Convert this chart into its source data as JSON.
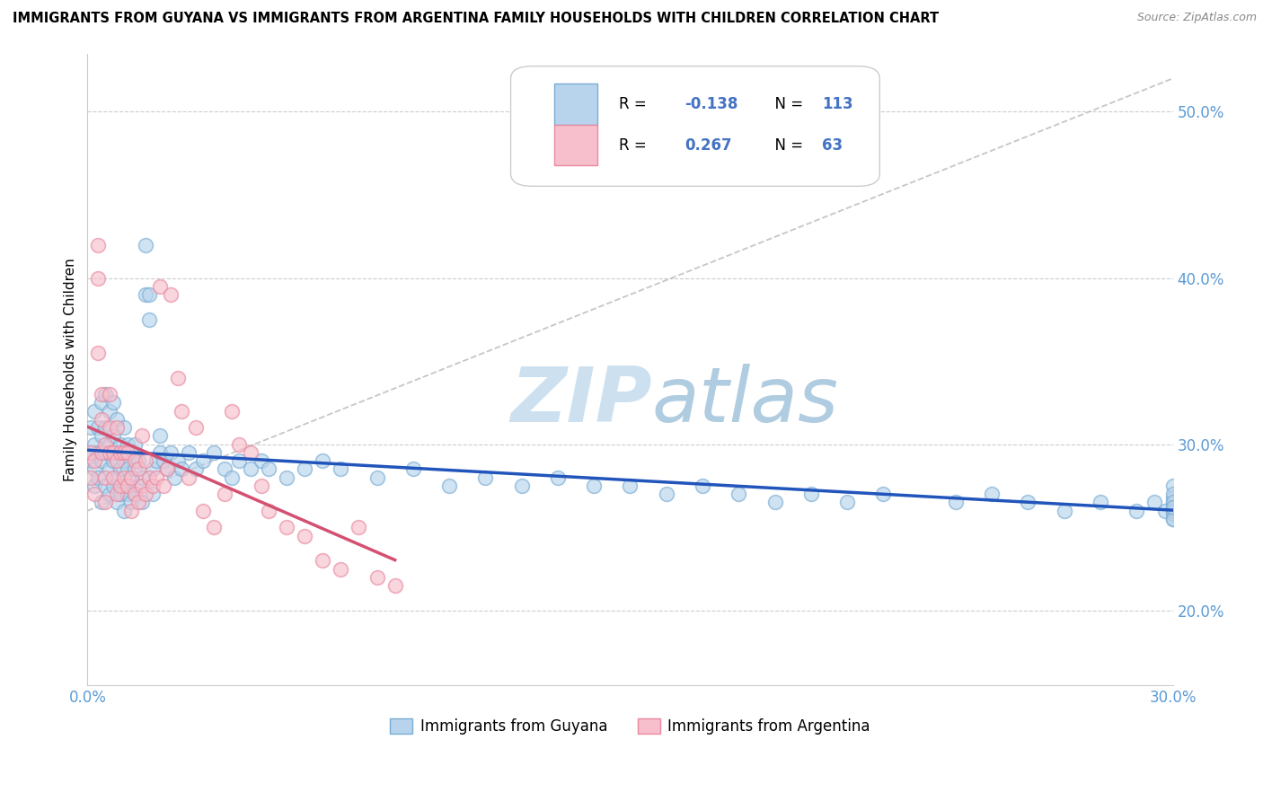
{
  "title": "IMMIGRANTS FROM GUYANA VS IMMIGRANTS FROM ARGENTINA FAMILY HOUSEHOLDS WITH CHILDREN CORRELATION CHART",
  "source": "Source: ZipAtlas.com",
  "ylabel": "Family Households with Children",
  "xlim": [
    0.0,
    0.3
  ],
  "ylim": [
    0.155,
    0.535
  ],
  "y_ticks": [
    0.2,
    0.3,
    0.4,
    0.5
  ],
  "x_ticks": [
    0.0,
    0.05,
    0.1,
    0.15,
    0.2,
    0.25,
    0.3
  ],
  "legend1_label": "Immigrants from Guyana",
  "legend2_label": "Immigrants from Argentina",
  "R_guyana": -0.138,
  "N_guyana": 113,
  "R_argentina": 0.267,
  "N_argentina": 63,
  "color_guyana_fill": "#b8d4ec",
  "color_guyana_edge": "#7aadd4",
  "color_argentina_fill": "#f7bfcc",
  "color_argentina_edge": "#e88aa0",
  "color_guyana_line": "#2255bb",
  "color_argentina_line": "#d45070",
  "color_diagonal": "#b8b8b8",
  "watermark_color": "#cce0f0",
  "guyana_x": [
    0.001,
    0.001,
    0.001,
    0.002,
    0.002,
    0.002,
    0.002,
    0.003,
    0.003,
    0.003,
    0.004,
    0.004,
    0.004,
    0.004,
    0.005,
    0.005,
    0.005,
    0.005,
    0.006,
    0.006,
    0.006,
    0.006,
    0.007,
    0.007,
    0.007,
    0.007,
    0.008,
    0.008,
    0.008,
    0.008,
    0.009,
    0.009,
    0.009,
    0.01,
    0.01,
    0.01,
    0.01,
    0.011,
    0.011,
    0.011,
    0.012,
    0.012,
    0.012,
    0.013,
    0.013,
    0.013,
    0.014,
    0.014,
    0.015,
    0.015,
    0.016,
    0.016,
    0.017,
    0.017,
    0.018,
    0.018,
    0.019,
    0.02,
    0.02,
    0.021,
    0.022,
    0.023,
    0.024,
    0.025,
    0.026,
    0.028,
    0.03,
    0.032,
    0.035,
    0.038,
    0.04,
    0.042,
    0.045,
    0.048,
    0.05,
    0.055,
    0.06,
    0.065,
    0.07,
    0.08,
    0.09,
    0.1,
    0.11,
    0.12,
    0.13,
    0.14,
    0.15,
    0.16,
    0.17,
    0.18,
    0.19,
    0.2,
    0.21,
    0.22,
    0.24,
    0.25,
    0.26,
    0.27,
    0.28,
    0.29,
    0.295,
    0.298,
    0.3,
    0.3,
    0.3,
    0.3,
    0.3,
    0.3,
    0.3,
    0.3,
    0.3,
    0.3,
    0.3
  ],
  "guyana_y": [
    0.29,
    0.31,
    0.295,
    0.285,
    0.275,
    0.3,
    0.32,
    0.28,
    0.295,
    0.31,
    0.265,
    0.29,
    0.305,
    0.325,
    0.275,
    0.295,
    0.31,
    0.33,
    0.27,
    0.285,
    0.3,
    0.32,
    0.275,
    0.29,
    0.305,
    0.325,
    0.265,
    0.28,
    0.295,
    0.315,
    0.27,
    0.285,
    0.3,
    0.26,
    0.275,
    0.29,
    0.31,
    0.27,
    0.285,
    0.3,
    0.265,
    0.28,
    0.295,
    0.27,
    0.285,
    0.3,
    0.275,
    0.29,
    0.265,
    0.28,
    0.42,
    0.39,
    0.375,
    0.39,
    0.27,
    0.285,
    0.29,
    0.295,
    0.305,
    0.29,
    0.285,
    0.295,
    0.28,
    0.29,
    0.285,
    0.295,
    0.285,
    0.29,
    0.295,
    0.285,
    0.28,
    0.29,
    0.285,
    0.29,
    0.285,
    0.28,
    0.285,
    0.29,
    0.285,
    0.28,
    0.285,
    0.275,
    0.28,
    0.275,
    0.28,
    0.275,
    0.275,
    0.27,
    0.275,
    0.27,
    0.265,
    0.27,
    0.265,
    0.27,
    0.265,
    0.27,
    0.265,
    0.26,
    0.265,
    0.26,
    0.265,
    0.26,
    0.265,
    0.275,
    0.268,
    0.255,
    0.258,
    0.262,
    0.27,
    0.265,
    0.26,
    0.255,
    0.262
  ],
  "argentina_x": [
    0.001,
    0.001,
    0.002,
    0.002,
    0.003,
    0.003,
    0.003,
    0.004,
    0.004,
    0.004,
    0.005,
    0.005,
    0.005,
    0.006,
    0.006,
    0.006,
    0.007,
    0.007,
    0.008,
    0.008,
    0.008,
    0.009,
    0.009,
    0.01,
    0.01,
    0.011,
    0.011,
    0.012,
    0.012,
    0.013,
    0.013,
    0.014,
    0.014,
    0.015,
    0.015,
    0.016,
    0.016,
    0.017,
    0.018,
    0.019,
    0.02,
    0.021,
    0.022,
    0.023,
    0.025,
    0.026,
    0.028,
    0.03,
    0.032,
    0.035,
    0.038,
    0.04,
    0.042,
    0.045,
    0.048,
    0.05,
    0.055,
    0.06,
    0.065,
    0.07,
    0.075,
    0.08,
    0.085
  ],
  "argentina_y": [
    0.295,
    0.28,
    0.27,
    0.29,
    0.42,
    0.4,
    0.355,
    0.295,
    0.315,
    0.33,
    0.28,
    0.3,
    0.265,
    0.295,
    0.31,
    0.33,
    0.28,
    0.295,
    0.27,
    0.29,
    0.31,
    0.275,
    0.295,
    0.28,
    0.295,
    0.275,
    0.295,
    0.26,
    0.28,
    0.27,
    0.29,
    0.265,
    0.285,
    0.275,
    0.305,
    0.27,
    0.29,
    0.28,
    0.275,
    0.28,
    0.395,
    0.275,
    0.285,
    0.39,
    0.34,
    0.32,
    0.28,
    0.31,
    0.26,
    0.25,
    0.27,
    0.32,
    0.3,
    0.295,
    0.275,
    0.26,
    0.25,
    0.245,
    0.23,
    0.225,
    0.25,
    0.22,
    0.215
  ]
}
